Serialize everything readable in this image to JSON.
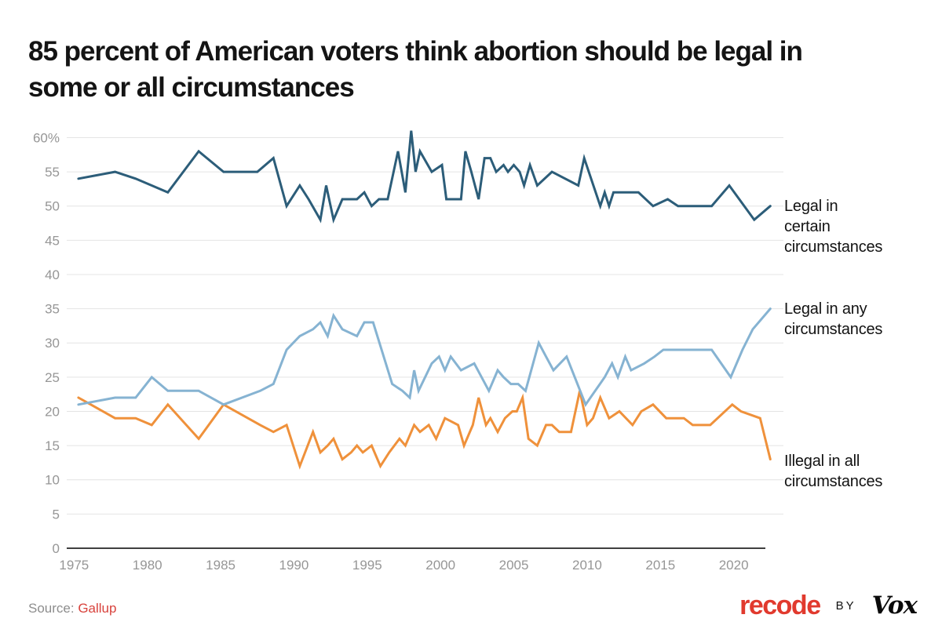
{
  "title": {
    "line1": "85 percent of American voters think abortion should be legal in",
    "line2": "some or all circumstances"
  },
  "source": {
    "label": "Source:",
    "link": "Gallup"
  },
  "branding": {
    "recode": "recode",
    "by": "BY",
    "vox": "Vox"
  },
  "colors": {
    "grid": "#e4e4e4",
    "axis": "#3f3f3f",
    "tick_label": "#969696",
    "title_text": "#141414",
    "source_gray": "#8d8d8d",
    "gallup_red": "#d8423c",
    "recode_red": "#e13a2e",
    "certain_blue": "#2c5d79",
    "any_blue": "#86b3d2",
    "illegal_orange": "#ef913b"
  },
  "chart_data": {
    "type": "line",
    "title": "85 percent of American voters think abortion should be legal in some or all circumstances",
    "xlabel": "",
    "ylabel": "",
    "xlim": [
      1974.5,
      2023.5
    ],
    "ylim": [
      0,
      62
    ],
    "grid": true,
    "legend_position": "right-annotations",
    "x_ticks": [
      1975,
      1980,
      1985,
      1990,
      1995,
      2000,
      2005,
      2010,
      2015,
      2020
    ],
    "y_ticks": [
      0,
      5,
      10,
      15,
      20,
      25,
      30,
      35,
      40,
      45,
      50,
      55,
      60
    ],
    "y_tick_labels": [
      "0",
      "5",
      "10",
      "15",
      "20",
      "25",
      "30",
      "35",
      "40",
      "45",
      "50",
      "55",
      "60%"
    ],
    "series": [
      {
        "name": "Legal in certain circumstances",
        "color": "#2c5d79",
        "points": [
          [
            1975.3,
            54
          ],
          [
            1977.8,
            55
          ],
          [
            1979.2,
            54
          ],
          [
            1980.3,
            53
          ],
          [
            1981.4,
            52
          ],
          [
            1983.5,
            58
          ],
          [
            1985.2,
            55
          ],
          [
            1987.5,
            55
          ],
          [
            1988.6,
            57
          ],
          [
            1989.5,
            50
          ],
          [
            1990.4,
            53
          ],
          [
            1991.0,
            51
          ],
          [
            1991.8,
            48
          ],
          [
            1992.2,
            53
          ],
          [
            1992.7,
            48
          ],
          [
            1993.3,
            51
          ],
          [
            1994.3,
            51
          ],
          [
            1994.8,
            52
          ],
          [
            1995.3,
            50
          ],
          [
            1995.8,
            51
          ],
          [
            1996.4,
            51
          ],
          [
            1997.1,
            58
          ],
          [
            1997.6,
            52
          ],
          [
            1998.0,
            61
          ],
          [
            1998.3,
            55
          ],
          [
            1998.6,
            58
          ],
          [
            1999.4,
            55
          ],
          [
            2000.1,
            56
          ],
          [
            2000.4,
            51
          ],
          [
            2001.4,
            51
          ],
          [
            2001.7,
            58
          ],
          [
            2002.1,
            55
          ],
          [
            2002.6,
            51
          ],
          [
            2003.0,
            57
          ],
          [
            2003.4,
            57
          ],
          [
            2003.8,
            55
          ],
          [
            2004.3,
            56
          ],
          [
            2004.6,
            55
          ],
          [
            2005.0,
            56
          ],
          [
            2005.4,
            55
          ],
          [
            2005.7,
            53
          ],
          [
            2006.1,
            56
          ],
          [
            2006.6,
            53
          ],
          [
            2007.6,
            55
          ],
          [
            2009.4,
            53
          ],
          [
            2009.8,
            57
          ],
          [
            2010.9,
            50
          ],
          [
            2011.2,
            52
          ],
          [
            2011.5,
            50
          ],
          [
            2011.8,
            52
          ],
          [
            2013.5,
            52
          ],
          [
            2014.5,
            50
          ],
          [
            2015.5,
            51
          ],
          [
            2016.2,
            50
          ],
          [
            2018.5,
            50
          ],
          [
            2019.7,
            53
          ],
          [
            2021.4,
            48
          ],
          [
            2022.5,
            50
          ]
        ]
      },
      {
        "name": "Legal in any circumstances",
        "color": "#86b3d2",
        "points": [
          [
            1975.3,
            21
          ],
          [
            1977.8,
            22
          ],
          [
            1979.2,
            22
          ],
          [
            1980.3,
            25
          ],
          [
            1981.4,
            23
          ],
          [
            1983.5,
            23
          ],
          [
            1985.2,
            21
          ],
          [
            1987.7,
            23
          ],
          [
            1988.6,
            24
          ],
          [
            1989.5,
            29
          ],
          [
            1990.4,
            31
          ],
          [
            1991.3,
            32
          ],
          [
            1991.8,
            33
          ],
          [
            1992.3,
            31
          ],
          [
            1992.7,
            34
          ],
          [
            1993.3,
            32
          ],
          [
            1994.3,
            31
          ],
          [
            1994.8,
            33
          ],
          [
            1995.4,
            33
          ],
          [
            1996.7,
            24
          ],
          [
            1997.4,
            23
          ],
          [
            1997.9,
            22
          ],
          [
            1998.2,
            26
          ],
          [
            1998.5,
            23
          ],
          [
            1999.4,
            27
          ],
          [
            1999.9,
            28
          ],
          [
            2000.3,
            26
          ],
          [
            2000.7,
            28
          ],
          [
            2001.4,
            26
          ],
          [
            2002.3,
            27
          ],
          [
            2002.8,
            25
          ],
          [
            2003.3,
            23
          ],
          [
            2003.9,
            26
          ],
          [
            2004.3,
            25
          ],
          [
            2004.8,
            24
          ],
          [
            2005.3,
            24
          ],
          [
            2005.8,
            23
          ],
          [
            2006.7,
            30
          ],
          [
            2007.2,
            28
          ],
          [
            2007.7,
            26
          ],
          [
            2008.6,
            28
          ],
          [
            2009.9,
            21
          ],
          [
            2011.2,
            25
          ],
          [
            2011.7,
            27
          ],
          [
            2012.1,
            25
          ],
          [
            2012.6,
            28
          ],
          [
            2013.0,
            26
          ],
          [
            2013.9,
            27
          ],
          [
            2014.6,
            28
          ],
          [
            2015.2,
            29
          ],
          [
            2018.5,
            29
          ],
          [
            2019.8,
            25
          ],
          [
            2020.6,
            29
          ],
          [
            2021.3,
            32
          ],
          [
            2022.5,
            35
          ]
        ]
      },
      {
        "name": "Illegal in all circumstances",
        "color": "#ef913b",
        "points": [
          [
            1975.3,
            22
          ],
          [
            1977.8,
            19
          ],
          [
            1979.2,
            19
          ],
          [
            1980.3,
            18
          ],
          [
            1981.4,
            21
          ],
          [
            1983.5,
            16
          ],
          [
            1985.2,
            21
          ],
          [
            1987.7,
            18
          ],
          [
            1988.6,
            17
          ],
          [
            1989.5,
            18
          ],
          [
            1990.4,
            12
          ],
          [
            1991.3,
            17
          ],
          [
            1991.8,
            14
          ],
          [
            1992.3,
            15
          ],
          [
            1992.7,
            16
          ],
          [
            1993.3,
            13
          ],
          [
            1993.9,
            14
          ],
          [
            1994.3,
            15
          ],
          [
            1994.7,
            14
          ],
          [
            1995.3,
            15
          ],
          [
            1995.9,
            12
          ],
          [
            1996.5,
            14
          ],
          [
            1997.2,
            16
          ],
          [
            1997.6,
            15
          ],
          [
            1998.2,
            18
          ],
          [
            1998.6,
            17
          ],
          [
            1999.2,
            18
          ],
          [
            1999.7,
            16
          ],
          [
            2000.3,
            19
          ],
          [
            2001.2,
            18
          ],
          [
            2001.6,
            15
          ],
          [
            2002.2,
            18
          ],
          [
            2002.6,
            22
          ],
          [
            2003.1,
            18
          ],
          [
            2003.4,
            19
          ],
          [
            2003.9,
            17
          ],
          [
            2004.4,
            19
          ],
          [
            2004.9,
            20
          ],
          [
            2005.2,
            20
          ],
          [
            2005.6,
            22
          ],
          [
            2006.0,
            16
          ],
          [
            2006.6,
            15
          ],
          [
            2007.2,
            18
          ],
          [
            2007.6,
            18
          ],
          [
            2008.1,
            17
          ],
          [
            2008.9,
            17
          ],
          [
            2009.5,
            23
          ],
          [
            2010.0,
            18
          ],
          [
            2010.4,
            19
          ],
          [
            2010.9,
            22
          ],
          [
            2011.5,
            19
          ],
          [
            2012.2,
            20
          ],
          [
            2013.1,
            18
          ],
          [
            2013.7,
            20
          ],
          [
            2014.5,
            21
          ],
          [
            2015.4,
            19
          ],
          [
            2016.6,
            19
          ],
          [
            2017.2,
            18
          ],
          [
            2018.4,
            18
          ],
          [
            2019.9,
            21
          ],
          [
            2020.5,
            20
          ],
          [
            2021.8,
            19
          ],
          [
            2022.5,
            13
          ]
        ]
      }
    ]
  }
}
